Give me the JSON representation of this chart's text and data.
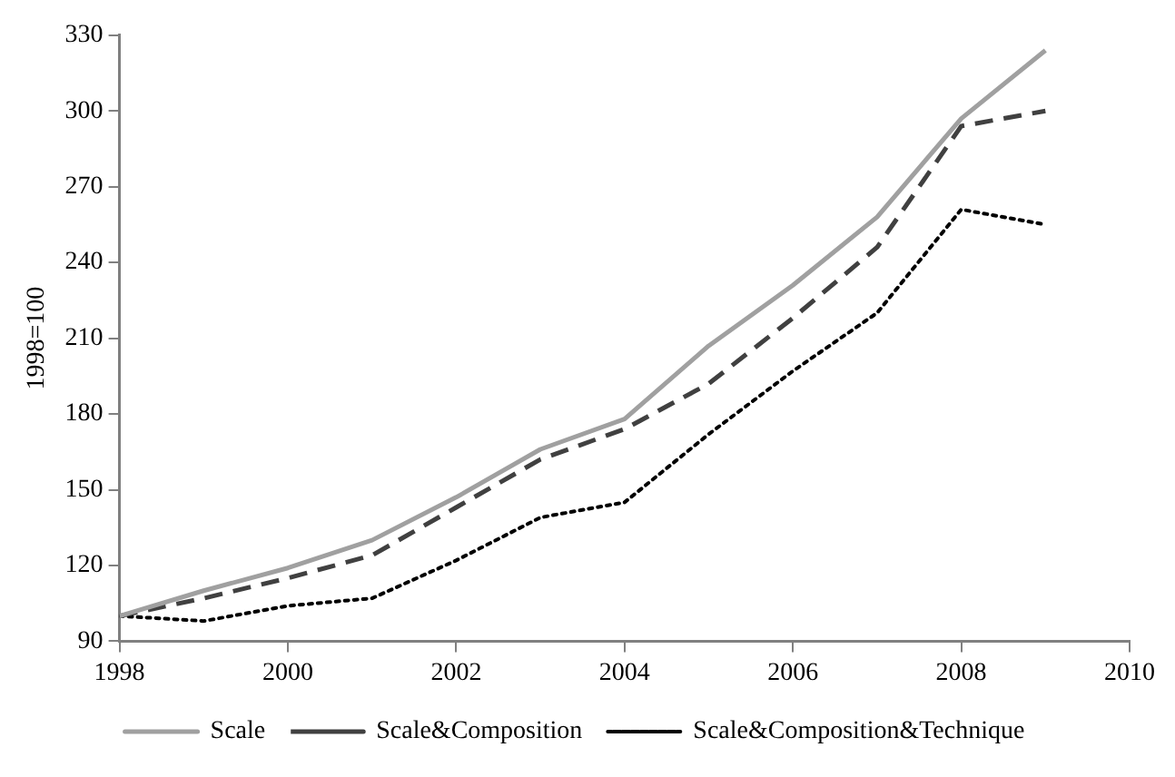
{
  "chart_data": {
    "type": "line",
    "ylabel": "1998=100",
    "x": [
      1998,
      1999,
      2000,
      2001,
      2002,
      2003,
      2004,
      2005,
      2006,
      2007,
      2008,
      2009
    ],
    "series": [
      {
        "name": "Scale",
        "color": "#a0a0a0",
        "line_style": "solid",
        "values": [
          100,
          110,
          119,
          130,
          147,
          166,
          178,
          207,
          231,
          258,
          297,
          324
        ]
      },
      {
        "name": "Scale&Composition",
        "color": "#404040",
        "line_style": "dashed",
        "values": [
          100,
          107,
          115,
          124,
          143,
          162,
          174,
          192,
          218,
          246,
          294,
          300
        ]
      },
      {
        "name": "Scale&Composition&Technique",
        "color": "#000000",
        "line_style": "dotted",
        "values": [
          100,
          98,
          104,
          107,
          122,
          139,
          145,
          172,
          197,
          220,
          261,
          255
        ]
      }
    ],
    "xlim": [
      1998,
      2010
    ],
    "xticks": [
      1998,
      2000,
      2002,
      2004,
      2006,
      2008,
      2010
    ],
    "ylim": [
      90,
      330
    ],
    "yticks": [
      90,
      120,
      150,
      180,
      210,
      240,
      270,
      300,
      330
    ],
    "grid": false,
    "legend": "bottom",
    "marker": "none"
  }
}
